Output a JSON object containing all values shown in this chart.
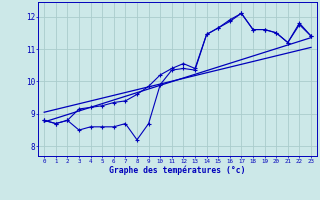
{
  "xlabel": "Graphe des températures (°c)",
  "xlim": [
    -0.5,
    23.5
  ],
  "ylim": [
    7.7,
    12.45
  ],
  "yticks": [
    8,
    9,
    10,
    11,
    12
  ],
  "xticks": [
    0,
    1,
    2,
    3,
    4,
    5,
    6,
    7,
    8,
    9,
    10,
    11,
    12,
    13,
    14,
    15,
    16,
    17,
    18,
    19,
    20,
    21,
    22,
    23
  ],
  "bg_color": "#cce8e8",
  "grid_color": "#aacccc",
  "line_color": "#0000bb",
  "series_low": [
    8.8,
    8.7,
    8.8,
    8.5,
    8.6,
    8.6,
    8.6,
    8.7,
    8.2,
    8.7,
    9.9,
    10.35,
    10.4,
    10.35,
    11.45,
    11.65,
    11.9,
    12.1,
    11.6,
    11.6,
    11.5,
    11.2,
    11.8,
    11.4
  ],
  "series_high": [
    8.8,
    8.7,
    8.8,
    9.15,
    9.2,
    9.25,
    9.35,
    9.4,
    9.6,
    9.85,
    10.2,
    10.4,
    10.55,
    10.4,
    11.45,
    11.65,
    11.85,
    12.1,
    11.6,
    11.6,
    11.5,
    11.2,
    11.75,
    11.4
  ],
  "trend1_x": [
    0,
    23
  ],
  "trend1_y": [
    8.75,
    11.35
  ],
  "trend2_x": [
    0,
    23
  ],
  "trend2_y": [
    9.05,
    11.05
  ]
}
